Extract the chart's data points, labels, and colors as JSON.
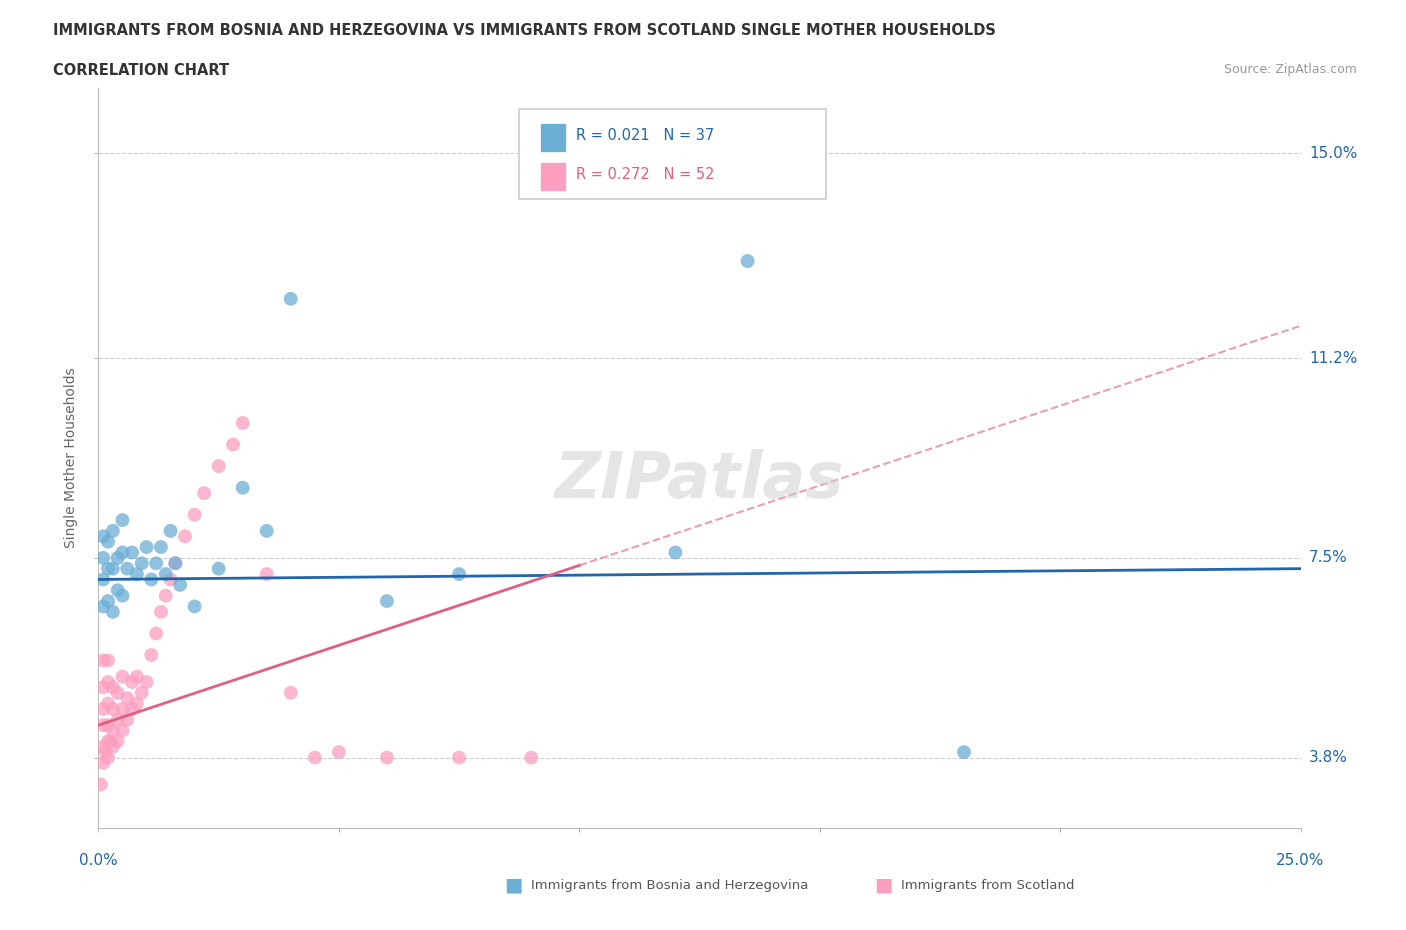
{
  "title_line1": "IMMIGRANTS FROM BOSNIA AND HERZEGOVINA VS IMMIGRANTS FROM SCOTLAND SINGLE MOTHER HOUSEHOLDS",
  "title_line2": "CORRELATION CHART",
  "source_text": "Source: ZipAtlas.com",
  "ylabel": "Single Mother Households",
  "x_min": 0.0,
  "x_max": 0.25,
  "y_min": 0.025,
  "y_max": 0.162,
  "y_ticks": [
    0.038,
    0.075,
    0.112,
    0.15
  ],
  "y_tick_labels": [
    "3.8%",
    "7.5%",
    "11.2%",
    "15.0%"
  ],
  "bosnia_color": "#6baed6",
  "scotland_color": "#fc9ebf",
  "bosnia_R": 0.021,
  "bosnia_N": 37,
  "scotland_R": 0.272,
  "scotland_N": 52,
  "bosnia_line_color": "#2166ac",
  "scotland_line_color": "#e06080",
  "watermark_text": "ZIPatlas",
  "bosnia_trend_y0": 0.071,
  "bosnia_trend_y1": 0.073,
  "scotland_trend_y0": 0.044,
  "scotland_trend_y1": 0.118,
  "bosnia_x": [
    0.001,
    0.001,
    0.001,
    0.001,
    0.002,
    0.002,
    0.002,
    0.003,
    0.003,
    0.003,
    0.004,
    0.004,
    0.005,
    0.005,
    0.005,
    0.006,
    0.007,
    0.008,
    0.009,
    0.01,
    0.011,
    0.012,
    0.013,
    0.014,
    0.015,
    0.016,
    0.017,
    0.02,
    0.025,
    0.03,
    0.035,
    0.04,
    0.06,
    0.075,
    0.12,
    0.135,
    0.18
  ],
  "bosnia_y": [
    0.079,
    0.075,
    0.071,
    0.066,
    0.078,
    0.073,
    0.067,
    0.08,
    0.073,
    0.065,
    0.075,
    0.069,
    0.082,
    0.076,
    0.068,
    0.073,
    0.076,
    0.072,
    0.074,
    0.077,
    0.071,
    0.074,
    0.077,
    0.072,
    0.08,
    0.074,
    0.07,
    0.066,
    0.073,
    0.088,
    0.08,
    0.123,
    0.067,
    0.072,
    0.076,
    0.13,
    0.039
  ],
  "scotland_x": [
    0.0005,
    0.001,
    0.001,
    0.001,
    0.001,
    0.001,
    0.001,
    0.0015,
    0.002,
    0.002,
    0.002,
    0.002,
    0.002,
    0.002,
    0.0025,
    0.003,
    0.003,
    0.003,
    0.003,
    0.004,
    0.004,
    0.004,
    0.005,
    0.005,
    0.005,
    0.006,
    0.006,
    0.007,
    0.007,
    0.008,
    0.008,
    0.009,
    0.01,
    0.011,
    0.012,
    0.013,
    0.014,
    0.015,
    0.016,
    0.018,
    0.02,
    0.022,
    0.025,
    0.028,
    0.03,
    0.035,
    0.04,
    0.045,
    0.05,
    0.06,
    0.075,
    0.09
  ],
  "scotland_y": [
    0.033,
    0.037,
    0.04,
    0.044,
    0.047,
    0.051,
    0.056,
    0.039,
    0.038,
    0.041,
    0.044,
    0.048,
    0.052,
    0.056,
    0.041,
    0.04,
    0.043,
    0.047,
    0.051,
    0.041,
    0.045,
    0.05,
    0.043,
    0.047,
    0.053,
    0.045,
    0.049,
    0.047,
    0.052,
    0.048,
    0.053,
    0.05,
    0.052,
    0.057,
    0.061,
    0.065,
    0.068,
    0.071,
    0.074,
    0.079,
    0.083,
    0.087,
    0.092,
    0.096,
    0.1,
    0.072,
    0.05,
    0.038,
    0.039,
    0.038,
    0.038,
    0.038
  ]
}
